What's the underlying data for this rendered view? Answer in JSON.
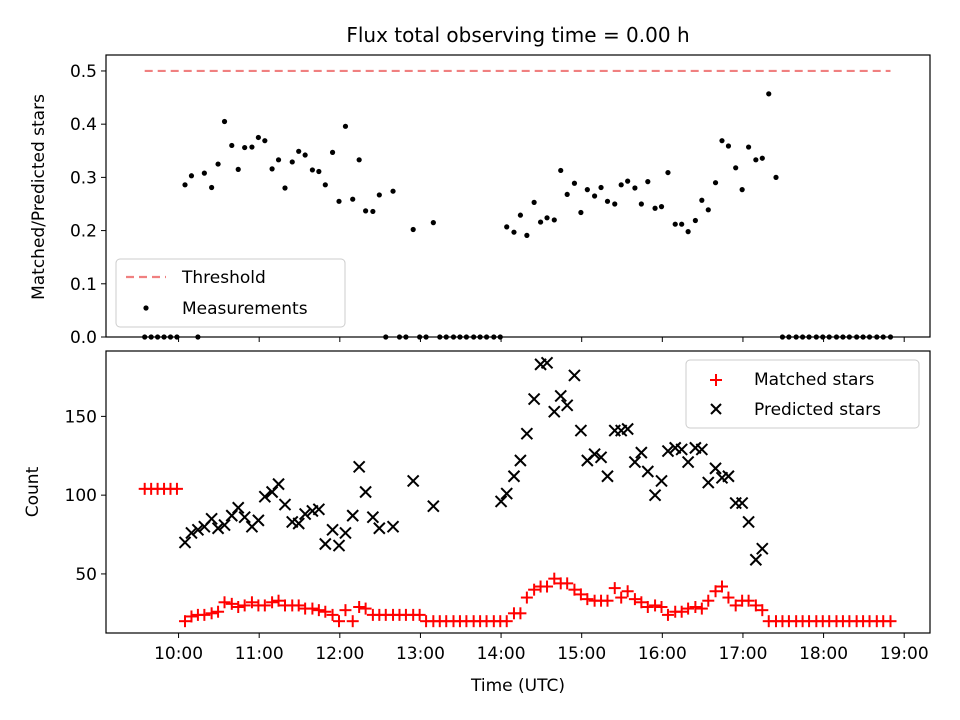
{
  "chart_data": [
    {
      "type": "scatter",
      "title": "Flux total observing time = 0.00 h",
      "xlabel": "",
      "ylabel": "Matched/Predicted stars",
      "xlim": [
        9.1,
        19.32
      ],
      "ylim": [
        0.0,
        0.53
      ],
      "yticks": [
        0.0,
        0.1,
        0.2,
        0.3,
        0.4,
        0.5
      ],
      "ytick_labels": [
        "0.0",
        "0.1",
        "0.2",
        "0.3",
        "0.4",
        "0.5"
      ],
      "xticks": [
        10,
        11,
        12,
        13,
        14,
        15,
        16,
        17,
        18,
        19
      ],
      "legend": {
        "position": "lower-left",
        "entries": [
          "Threshold",
          "Measurements"
        ]
      },
      "threshold": {
        "name": "Threshold",
        "value": 0.5,
        "x_range": [
          9.58,
          18.83
        ],
        "color": "#f08080",
        "style": "dashed"
      },
      "series": [
        {
          "name": "Measurements",
          "color": "#000000",
          "marker": "dot",
          "x": [
            9.58,
            9.66,
            9.74,
            9.82,
            9.9,
            9.98,
            10.08,
            10.16,
            10.24,
            10.32,
            10.41,
            10.49,
            10.57,
            10.66,
            10.74,
            10.82,
            10.91,
            10.99,
            11.07,
            11.16,
            11.24,
            11.32,
            11.41,
            11.49,
            11.57,
            11.66,
            11.74,
            11.82,
            11.91,
            11.99,
            12.07,
            12.16,
            12.24,
            12.32,
            12.41,
            12.49,
            12.57,
            12.66,
            12.74,
            12.82,
            12.91,
            12.99,
            13.07,
            13.16,
            13.24,
            13.32,
            13.41,
            13.49,
            13.57,
            13.66,
            13.74,
            13.82,
            13.91,
            13.99,
            14.07,
            14.16,
            14.24,
            14.32,
            14.41,
            14.49,
            14.57,
            14.66,
            14.74,
            14.82,
            14.91,
            14.99,
            15.07,
            15.16,
            15.24,
            15.32,
            15.41,
            15.49,
            15.57,
            15.66,
            15.74,
            15.82,
            15.91,
            15.99,
            16.07,
            16.16,
            16.24,
            16.32,
            16.41,
            16.49,
            16.57,
            16.66,
            16.74,
            16.82,
            16.91,
            16.99,
            17.07,
            17.16,
            17.24,
            17.32,
            17.41,
            17.49,
            17.57,
            17.66,
            17.74,
            17.82,
            17.91,
            17.99,
            18.07,
            18.16,
            18.24,
            18.32,
            18.41,
            18.49,
            18.57,
            18.66,
            18.74,
            18.83
          ],
          "y": [
            0.0,
            0.0,
            0.0,
            0.0,
            0.0,
            0.0,
            0.286,
            0.303,
            0.0,
            0.308,
            0.281,
            0.325,
            0.405,
            0.36,
            0.315,
            0.356,
            0.357,
            0.375,
            0.369,
            0.316,
            0.333,
            0.28,
            0.329,
            0.349,
            0.342,
            0.314,
            0.311,
            0.286,
            0.347,
            0.255,
            0.396,
            0.259,
            0.333,
            0.237,
            0.236,
            0.267,
            0.0,
            0.274,
            0.0,
            0.0,
            0.202,
            0.0,
            0.0,
            0.215,
            0.0,
            0.0,
            0.0,
            0.0,
            0.0,
            0.0,
            0.0,
            0.0,
            0.0,
            0.0,
            0.207,
            0.197,
            0.229,
            0.191,
            0.253,
            0.216,
            0.224,
            0.22,
            0.313,
            0.268,
            0.289,
            0.234,
            0.277,
            0.265,
            0.281,
            0.255,
            0.25,
            0.286,
            0.293,
            0.28,
            0.25,
            0.292,
            0.242,
            0.245,
            0.309,
            0.212,
            0.212,
            0.198,
            0.219,
            0.257,
            0.239,
            0.29,
            0.369,
            0.359,
            0.318,
            0.277,
            0.357,
            0.333,
            0.336,
            0.457,
            0.3,
            0.0,
            0.0,
            0.0,
            0.0,
            0.0,
            0.0,
            0.0,
            0.0,
            0.0,
            0.0,
            0.0,
            0.0,
            0.0,
            0.0,
            0.0,
            0.0,
            0.0
          ]
        }
      ]
    },
    {
      "type": "scatter",
      "title": "",
      "xlabel": "Time (UTC)",
      "ylabel": "Count",
      "xlim": [
        9.1,
        19.32
      ],
      "ylim": [
        12.5,
        191.5
      ],
      "yticks": [
        50,
        100,
        150
      ],
      "ytick_labels": [
        "50",
        "100",
        "150"
      ],
      "xticks": [
        10,
        11,
        12,
        13,
        14,
        15,
        16,
        17,
        18,
        19
      ],
      "xtick_labels": [
        "10:00",
        "11:00",
        "12:00",
        "13:00",
        "14:00",
        "15:00",
        "16:00",
        "17:00",
        "18:00",
        "19:00"
      ],
      "legend": {
        "position": "upper-right",
        "entries": [
          "Matched stars",
          "Predicted stars"
        ]
      },
      "series": [
        {
          "name": "Matched stars",
          "color": "#ff0000",
          "marker": "plus",
          "x": [
            9.58,
            9.66,
            9.74,
            9.82,
            9.9,
            9.98,
            10.08,
            10.16,
            10.24,
            10.32,
            10.41,
            10.49,
            10.57,
            10.66,
            10.74,
            10.82,
            10.91,
            10.99,
            11.07,
            11.16,
            11.24,
            11.32,
            11.41,
            11.49,
            11.57,
            11.66,
            11.74,
            11.82,
            11.91,
            11.99,
            12.07,
            12.16,
            12.24,
            12.32,
            12.41,
            12.49,
            12.57,
            12.66,
            12.74,
            12.82,
            12.91,
            12.99,
            13.07,
            13.16,
            13.24,
            13.32,
            13.41,
            13.49,
            13.57,
            13.66,
            13.74,
            13.82,
            13.91,
            13.99,
            14.07,
            14.16,
            14.24,
            14.32,
            14.41,
            14.49,
            14.57,
            14.66,
            14.74,
            14.82,
            14.91,
            14.99,
            15.07,
            15.16,
            15.24,
            15.32,
            15.41,
            15.49,
            15.57,
            15.66,
            15.74,
            15.82,
            15.91,
            15.99,
            16.07,
            16.16,
            16.24,
            16.32,
            16.41,
            16.49,
            16.57,
            16.66,
            16.74,
            16.82,
            16.91,
            16.99,
            17.07,
            17.16,
            17.24,
            17.32,
            17.41,
            17.49,
            17.57,
            17.66,
            17.74,
            17.82,
            17.91,
            17.99,
            18.07,
            18.16,
            18.24,
            18.32,
            18.41,
            18.49,
            18.57,
            18.66,
            18.74,
            18.83
          ],
          "y": [
            104,
            104,
            104,
            104,
            104,
            104,
            20,
            23,
            24,
            24,
            25,
            26,
            32,
            31,
            29,
            30,
            32,
            30,
            30,
            32,
            33,
            30,
            30,
            30,
            28,
            28,
            27,
            26,
            24,
            20,
            27,
            20,
            29,
            28,
            24,
            24,
            24,
            24,
            24,
            24,
            24,
            24,
            20,
            20,
            20,
            20,
            20,
            20,
            20,
            20,
            20,
            20,
            20,
            20,
            20,
            25,
            25,
            35,
            40,
            42,
            42,
            47,
            44,
            44,
            40,
            37,
            34,
            33,
            33,
            33,
            41,
            35,
            39,
            34,
            32,
            29,
            30,
            29,
            24,
            26,
            26,
            28,
            29,
            28,
            33,
            39,
            42,
            35,
            30,
            33,
            33,
            30,
            27,
            20,
            20,
            20,
            20,
            20,
            20,
            20,
            20,
            20,
            20,
            20,
            20,
            20,
            20,
            20,
            20,
            20,
            20,
            20
          ]
        },
        {
          "name": "Predicted stars",
          "color": "#000000",
          "marker": "x",
          "x": [
            10.08,
            10.16,
            10.24,
            10.32,
            10.41,
            10.49,
            10.57,
            10.66,
            10.74,
            10.82,
            10.91,
            10.99,
            11.07,
            11.16,
            11.24,
            11.32,
            11.41,
            11.49,
            11.57,
            11.66,
            11.74,
            11.82,
            11.91,
            11.99,
            12.07,
            12.16,
            12.24,
            12.32,
            12.41,
            12.49,
            12.66,
            12.91,
            13.16,
            14.0,
            14.07,
            14.16,
            14.24,
            14.32,
            14.41,
            14.49,
            14.57,
            14.66,
            14.74,
            14.82,
            14.91,
            14.99,
            15.07,
            15.16,
            15.24,
            15.32,
            15.41,
            15.49,
            15.57,
            15.66,
            15.74,
            15.82,
            15.91,
            15.99,
            16.07,
            16.16,
            16.24,
            16.32,
            16.41,
            16.49,
            16.57,
            16.66,
            16.74,
            16.82,
            16.91,
            16.99,
            17.07,
            17.16,
            17.24
          ],
          "y": [
            70,
            76,
            78,
            80,
            85,
            79,
            81,
            87,
            92,
            86,
            80,
            84,
            99,
            102,
            107,
            94,
            83,
            82,
            88,
            90,
            91,
            69,
            78,
            68,
            76,
            87,
            118,
            102,
            86,
            79,
            80,
            109,
            93,
            96,
            101,
            112,
            122,
            139,
            161,
            183,
            184,
            153,
            163,
            157,
            176,
            141,
            122,
            126,
            124,
            112,
            141,
            141,
            142,
            121,
            127,
            115,
            100,
            109,
            128,
            130,
            129,
            121,
            130,
            129,
            108,
            117,
            111,
            112,
            95,
            95,
            83,
            59,
            66
          ]
        }
      ]
    }
  ]
}
